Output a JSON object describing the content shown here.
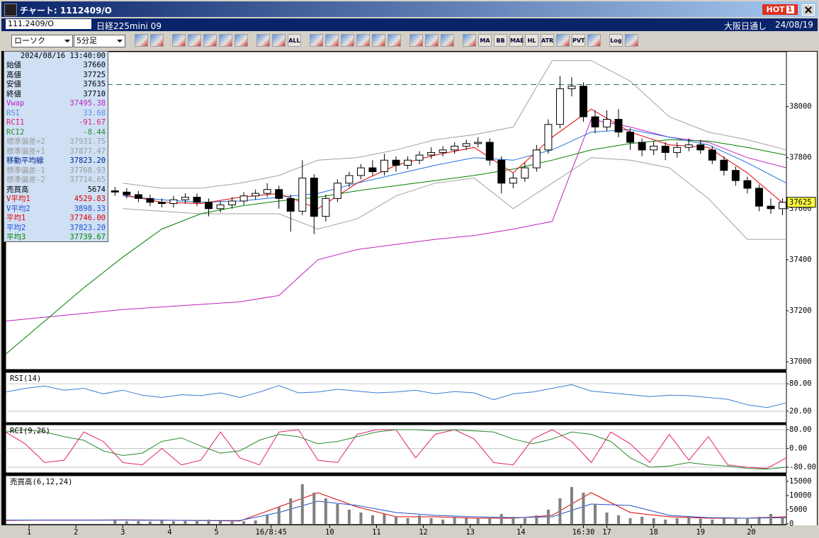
{
  "window": {
    "title": "チャート: 1112409/O",
    "hot_label": "HOT",
    "hot_number": "1"
  },
  "header": {
    "symbol": "111.2409/O",
    "name": "日経225mini 09",
    "exchange": "大阪日通し",
    "date": "24/08/19"
  },
  "toolbar": {
    "chart_type": "ローソク",
    "interval": "5分足",
    "buttons": [
      "ALL",
      "MA",
      "BB",
      "MAE",
      "HL",
      "ATR",
      "PVT",
      "Log"
    ]
  },
  "info_panel": {
    "timestamp": "2024/08/16 13:40:00",
    "rows": [
      {
        "label": "始値",
        "value": "37660",
        "color": "#000000"
      },
      {
        "label": "高値",
        "value": "37725",
        "color": "#000000"
      },
      {
        "label": "安値",
        "value": "37635",
        "color": "#000000"
      },
      {
        "label": "終値",
        "value": "37710",
        "color": "#000000"
      },
      {
        "label": "Vwap",
        "value": "37495.38",
        "color": "#c020c0"
      },
      {
        "label": "RSI",
        "value": "33.68",
        "color": "#5a8fe0"
      },
      {
        "label": "RCI1",
        "value": "-91.67",
        "color": "#e0206e"
      },
      {
        "label": "RCI2",
        "value": "-8.44",
        "color": "#2a8a2a"
      },
      {
        "label": "標準偏差+2",
        "value": "37931.75",
        "color": "#9a9a9a"
      },
      {
        "label": "標準偏差+1",
        "value": "37877.47",
        "color": "#9a9a9a"
      },
      {
        "label": "移動平均線",
        "value": "37823.20",
        "color": "#00208a"
      },
      {
        "label": "標準偏差-1",
        "value": "37768.93",
        "color": "#9a9a9a"
      },
      {
        "label": "標準偏差-2",
        "value": "37714.65",
        "color": "#9a9a9a"
      },
      {
        "label": "売買高",
        "value": "5674",
        "color": "#000000"
      },
      {
        "label": "V平均1",
        "value": "4529.83",
        "color": "#e00000"
      },
      {
        "label": "V平均2",
        "value": "3898.33",
        "color": "#2050d0"
      },
      {
        "label": "平均1",
        "value": "37746.00",
        "color": "#e00000"
      },
      {
        "label": "平均2",
        "value": "37823.20",
        "color": "#2050d0"
      },
      {
        "label": "平均3",
        "value": "37739.67",
        "color": "#008000"
      }
    ]
  },
  "chart_data": [
    {
      "type": "candlestick",
      "xlim": [
        0,
        200
      ],
      "ylim": [
        36970,
        38215
      ],
      "yticks": [
        37000,
        37200,
        37400,
        37600,
        37800,
        38000
      ],
      "xticks": [
        {
          "value": 6,
          "label": "1"
        },
        {
          "value": 18,
          "label": "2"
        },
        {
          "value": 30,
          "label": "3"
        },
        {
          "value": 42,
          "label": "4"
        },
        {
          "value": 54,
          "label": "5"
        },
        {
          "value": 68,
          "label": "16/8:45"
        },
        {
          "value": 83,
          "label": "10"
        },
        {
          "value": 95,
          "label": "11"
        },
        {
          "value": 107,
          "label": "12"
        },
        {
          "value": 119,
          "label": "13"
        },
        {
          "value": 132,
          "label": "14"
        },
        {
          "value": 148,
          "label": "16:30"
        },
        {
          "value": 154,
          "label": "17"
        },
        {
          "value": 166,
          "label": "18"
        },
        {
          "value": 178,
          "label": "19"
        },
        {
          "value": 191,
          "label": "20"
        }
      ],
      "last_price": 37625,
      "up_color": "#ffffff",
      "down_color": "#000000",
      "hlines": [
        {
          "value": 38086,
          "color": "#1a7a7a"
        }
      ],
      "x": [
        28,
        31,
        34,
        37,
        40,
        43,
        46,
        49,
        52,
        55,
        58,
        61,
        64,
        67,
        70,
        73,
        76,
        79,
        82,
        85,
        88,
        91,
        94,
        97,
        100,
        103,
        106,
        109,
        112,
        115,
        118,
        121,
        124,
        127,
        130,
        133,
        136,
        139,
        142,
        145,
        148,
        151,
        154,
        157,
        160,
        163,
        166,
        169,
        172,
        175,
        178,
        181,
        184,
        187,
        190,
        193,
        196,
        199
      ],
      "open": [
        37670,
        37665,
        37655,
        37640,
        37625,
        37620,
        37635,
        37645,
        37625,
        37600,
        37615,
        37630,
        37650,
        37660,
        37675,
        37640,
        37590,
        37720,
        37570,
        37640,
        37700,
        37730,
        37760,
        37745,
        37790,
        37770,
        37790,
        37810,
        37820,
        37830,
        37845,
        37855,
        37860,
        37790,
        37700,
        37720,
        37760,
        37830,
        37930,
        38070,
        38080,
        37960,
        37920,
        37950,
        37900,
        37860,
        37830,
        37845,
        37820,
        37840,
        37850,
        37830,
        37790,
        37750,
        37710,
        37680,
        37610,
        37600
      ],
      "high": [
        37685,
        37680,
        37670,
        37655,
        37640,
        37650,
        37660,
        37660,
        37640,
        37630,
        37645,
        37665,
        37675,
        37700,
        37690,
        37655,
        37790,
        37735,
        37655,
        37715,
        37745,
        37775,
        37790,
        37815,
        37805,
        37805,
        37825,
        37840,
        37845,
        37860,
        37870,
        37880,
        37875,
        37805,
        37740,
        37780,
        37850,
        37950,
        38120,
        38115,
        38095,
        37985,
        37985,
        37990,
        37915,
        37875,
        37865,
        37860,
        37860,
        37875,
        37870,
        37845,
        37805,
        37765,
        37725,
        37695,
        37640,
        37640
      ],
      "low": [
        37650,
        37640,
        37625,
        37610,
        37605,
        37605,
        37620,
        37610,
        37570,
        37585,
        37600,
        37615,
        37635,
        37645,
        37600,
        37510,
        37575,
        37500,
        37550,
        37625,
        37685,
        37715,
        37730,
        37730,
        37745,
        37755,
        37775,
        37795,
        37805,
        37815,
        37830,
        37840,
        37770,
        37660,
        37680,
        37705,
        37745,
        37815,
        37915,
        38040,
        37940,
        37895,
        37905,
        37880,
        37830,
        37805,
        37810,
        37790,
        37800,
        37825,
        37815,
        37775,
        37730,
        37690,
        37660,
        37590,
        37580,
        37575
      ],
      "close": [
        37665,
        37655,
        37640,
        37625,
        37620,
        37635,
        37645,
        37625,
        37600,
        37615,
        37630,
        37650,
        37660,
        37675,
        37640,
        37590,
        37720,
        37570,
        37640,
        37700,
        37730,
        37760,
        37745,
        37790,
        37770,
        37790,
        37810,
        37820,
        37830,
        37845,
        37855,
        37860,
        37790,
        37700,
        37720,
        37760,
        37830,
        37930,
        38070,
        38080,
        37960,
        37920,
        37950,
        37900,
        37860,
        37830,
        37845,
        37820,
        37840,
        37850,
        37830,
        37790,
        37750,
        37710,
        37680,
        37610,
        37600,
        37625
      ],
      "overlay_x": [
        0,
        10,
        20,
        30,
        40,
        50,
        60,
        70,
        80,
        90,
        100,
        110,
        120,
        130,
        140,
        150,
        160,
        170,
        180,
        190,
        200
      ],
      "overlays": [
        {
          "color": "#a0a0a0",
          "values": [
            null,
            null,
            null,
            37700,
            37680,
            37680,
            37700,
            37730,
            37790,
            37800,
            37830,
            37870,
            37890,
            37920,
            38180,
            38180,
            38100,
            37960,
            37900,
            37870,
            37830
          ]
        },
        {
          "color": "#a0a0a0",
          "values": [
            null,
            null,
            null,
            37600,
            37590,
            37580,
            37580,
            37580,
            37520,
            37560,
            37650,
            37700,
            37720,
            37600,
            37700,
            37800,
            37790,
            37760,
            37640,
            37480,
            37480
          ]
        },
        {
          "color": "#c020c0",
          "values": [
            37160,
            37175,
            37190,
            37205,
            37215,
            37225,
            37235,
            37260,
            37400,
            37440,
            37460,
            37480,
            37495,
            37520,
            37550,
            37950,
            37920,
            37880,
            37860,
            37800,
            37760
          ]
        },
        {
          "color": "#008000",
          "values": [
            37030,
            37160,
            37290,
            37410,
            37520,
            37580,
            37610,
            37630,
            37645,
            37670,
            37690,
            37710,
            37730,
            37755,
            37790,
            37830,
            37855,
            37870,
            37865,
            37840,
            37810
          ]
        },
        {
          "color": "#1f6fe0",
          "values": [
            null,
            null,
            null,
            37650,
            37635,
            37625,
            37630,
            37645,
            37660,
            37700,
            37735,
            37770,
            37800,
            37790,
            37830,
            37900,
            37910,
            37880,
            37850,
            37780,
            37700
          ]
        },
        {
          "color": "#e00000",
          "values": [
            null,
            null,
            null,
            37655,
            37625,
            37620,
            37645,
            37660,
            37600,
            37700,
            37770,
            37810,
            37840,
            37740,
            37880,
            37990,
            37900,
            37850,
            37840,
            37740,
            37610
          ]
        }
      ]
    },
    {
      "type": "line",
      "title": "RSI(14)",
      "xlim": [
        0,
        200
      ],
      "ylim": [
        -5,
        105
      ],
      "grid": true,
      "yticks": [
        {
          "value": 80,
          "label": "80.00"
        },
        {
          "value": 20,
          "label": "20.00"
        }
      ],
      "x": [
        0,
        5,
        10,
        15,
        20,
        25,
        30,
        35,
        40,
        45,
        50,
        55,
        60,
        65,
        70,
        75,
        80,
        85,
        90,
        95,
        100,
        105,
        110,
        115,
        120,
        125,
        130,
        135,
        140,
        145,
        150,
        155,
        160,
        165,
        170,
        175,
        180,
        185,
        190,
        195,
        200
      ],
      "series": [
        {
          "color": "#3a7bd5",
          "values": [
            62,
            70,
            75,
            66,
            70,
            58,
            66,
            55,
            50,
            56,
            54,
            60,
            50,
            62,
            76,
            60,
            62,
            68,
            64,
            60,
            62,
            66,
            58,
            63,
            60,
            45,
            58,
            62,
            70,
            78,
            64,
            60,
            56,
            52,
            55,
            54,
            50,
            46,
            34,
            28,
            38
          ]
        }
      ]
    },
    {
      "type": "line",
      "title": "RCI(9,26)",
      "xlim": [
        0,
        200
      ],
      "ylim": [
        -104,
        101
      ],
      "grid": true,
      "yticks": [
        {
          "value": 80,
          "label": "80.00"
        },
        {
          "value": 0,
          "label": "0.00"
        },
        {
          "value": -80,
          "label": "-80.00"
        }
      ],
      "x": [
        0,
        5,
        10,
        15,
        20,
        25,
        30,
        35,
        40,
        45,
        50,
        55,
        60,
        65,
        70,
        75,
        80,
        85,
        90,
        95,
        100,
        105,
        110,
        115,
        120,
        125,
        130,
        135,
        140,
        145,
        150,
        155,
        160,
        165,
        170,
        175,
        180,
        185,
        190,
        195,
        200
      ],
      "series": [
        {
          "color": "#e0206e",
          "values": [
            70,
            20,
            -60,
            -50,
            70,
            30,
            -60,
            -70,
            0,
            -70,
            -50,
            70,
            -40,
            -70,
            70,
            80,
            -50,
            -60,
            60,
            80,
            80,
            -40,
            60,
            80,
            40,
            -60,
            -70,
            40,
            80,
            30,
            -60,
            70,
            20,
            -60,
            60,
            -50,
            50,
            -70,
            -80,
            -85,
            -40
          ]
        },
        {
          "color": "#2a8a2a",
          "values": [
            70,
            80,
            70,
            50,
            35,
            -10,
            -30,
            -20,
            30,
            45,
            10,
            -20,
            -10,
            35,
            60,
            50,
            20,
            30,
            50,
            70,
            80,
            80,
            75,
            80,
            75,
            70,
            40,
            20,
            40,
            70,
            60,
            30,
            -40,
            -80,
            -75,
            -60,
            -70,
            -75,
            -85,
            -88,
            -80
          ]
        }
      ]
    },
    {
      "type": "bar",
      "title": "売買高(6,12,24)",
      "xlim": [
        0,
        200
      ],
      "ylim": [
        -250,
        17000
      ],
      "color": "#808080",
      "yticks": [
        15000,
        10000,
        5000,
        0
      ],
      "x": [
        28,
        31,
        34,
        37,
        40,
        43,
        46,
        49,
        52,
        55,
        58,
        61,
        64,
        67,
        70,
        73,
        76,
        79,
        82,
        85,
        88,
        91,
        94,
        97,
        100,
        103,
        106,
        109,
        112,
        115,
        118,
        121,
        124,
        127,
        130,
        133,
        136,
        139,
        142,
        145,
        148,
        151,
        154,
        157,
        160,
        163,
        166,
        169,
        172,
        175,
        178,
        181,
        184,
        187,
        190,
        193,
        196,
        199
      ],
      "values": [
        1200,
        900,
        1000,
        800,
        1100,
        900,
        1000,
        1200,
        1500,
        1000,
        800,
        900,
        1200,
        3000,
        6000,
        9000,
        14000,
        11000,
        9000,
        7000,
        5000,
        4000,
        3000,
        3500,
        2500,
        2000,
        3000,
        2000,
        1500,
        2500,
        2000,
        1800,
        2500,
        3500,
        2500,
        2000,
        3000,
        5000,
        9000,
        13000,
        11000,
        7000,
        4000,
        3000,
        2000,
        2500,
        2000,
        1500,
        2000,
        2500,
        1800,
        1500,
        2000,
        2200,
        2000,
        2500,
        3500,
        2000
      ],
      "overlay_x": [
        0,
        10,
        20,
        30,
        40,
        50,
        60,
        70,
        80,
        90,
        100,
        110,
        120,
        130,
        140,
        150,
        160,
        170,
        180,
        190,
        200
      ],
      "overlays": [
        {
          "color": "#e00000",
          "values": [
            1200,
            1300,
            1300,
            1400,
            1300,
            1200,
            1000,
            6000,
            11000,
            6000,
            2500,
            2500,
            2000,
            2000,
            3000,
            11000,
            4000,
            2500,
            2000,
            2000,
            2500
          ]
        },
        {
          "color": "#2050d0",
          "values": [
            1300,
            1300,
            1300,
            1300,
            1250,
            1200,
            1200,
            4000,
            8000,
            6500,
            4000,
            3000,
            2500,
            2200,
            2500,
            7000,
            6500,
            3000,
            2200,
            2000,
            2200
          ]
        }
      ]
    }
  ]
}
